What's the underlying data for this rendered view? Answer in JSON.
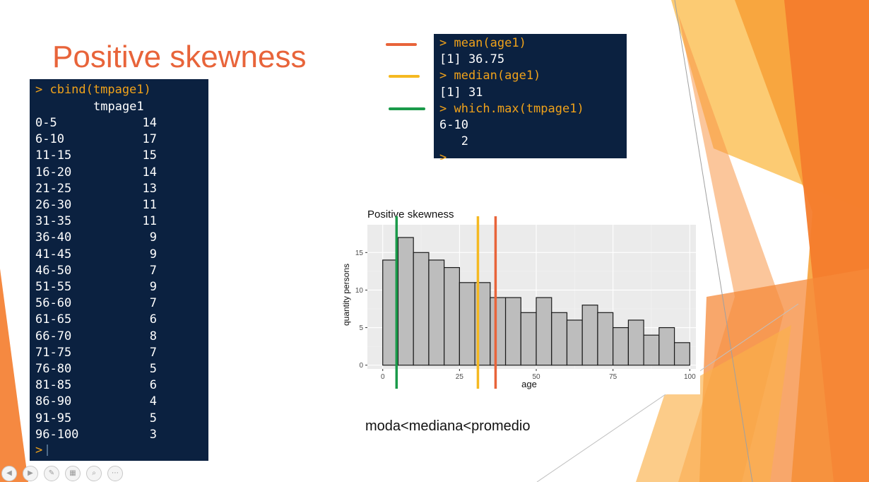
{
  "slide": {
    "title": "Positive skewness",
    "caption": "moda<mediana<promedio"
  },
  "table_console": {
    "command": "> cbind(tmpage1)",
    "header": "tmpage1",
    "rows": [
      {
        "label": "0-5",
        "value": "14"
      },
      {
        "label": "6-10",
        "value": "17"
      },
      {
        "label": "11-15",
        "value": "15"
      },
      {
        "label": "16-20",
        "value": "14"
      },
      {
        "label": "21-25",
        "value": "13"
      },
      {
        "label": "26-30",
        "value": "11"
      },
      {
        "label": "31-35",
        "value": "11"
      },
      {
        "label": "36-40",
        "value": "9"
      },
      {
        "label": "41-45",
        "value": "9"
      },
      {
        "label": "46-50",
        "value": "7"
      },
      {
        "label": "51-55",
        "value": "9"
      },
      {
        "label": "56-60",
        "value": "7"
      },
      {
        "label": "61-65",
        "value": "6"
      },
      {
        "label": "66-70",
        "value": "8"
      },
      {
        "label": "71-75",
        "value": "7"
      },
      {
        "label": "76-80",
        "value": "5"
      },
      {
        "label": "81-85",
        "value": "6"
      },
      {
        "label": "86-90",
        "value": "4"
      },
      {
        "label": "91-95",
        "value": "5"
      },
      {
        "label": "96-100",
        "value": "3"
      }
    ],
    "prompt": ">"
  },
  "stats_console": {
    "lines": [
      {
        "text": "> mean(age1)",
        "kind": "cmd"
      },
      {
        "text": "[1] 36.75",
        "kind": "out"
      },
      {
        "text": "> median(age1)",
        "kind": "cmd"
      },
      {
        "text": "[1] 31",
        "kind": "out"
      },
      {
        "text": "> which.max(tmpage1)",
        "kind": "cmd"
      },
      {
        "text": "6-10",
        "kind": "out"
      },
      {
        "text": "   2",
        "kind": "out"
      }
    ],
    "prompt": ">"
  },
  "legend_colors": {
    "mean": "#e8643a",
    "median": "#f5b921",
    "mode": "#1a9a4a"
  },
  "chart_data": {
    "type": "bar",
    "title": "Positive skewness",
    "xlabel": "age",
    "ylabel": "quantity persons",
    "bin_width": 5,
    "bins_start": [
      0,
      5,
      10,
      15,
      20,
      25,
      30,
      35,
      40,
      45,
      50,
      55,
      60,
      65,
      70,
      75,
      80,
      85,
      90,
      95
    ],
    "values": [
      14,
      17,
      15,
      14,
      13,
      11,
      11,
      9,
      9,
      7,
      9,
      7,
      6,
      8,
      7,
      5,
      6,
      4,
      5,
      3
    ],
    "xlim": [
      -5,
      102
    ],
    "ylim": [
      -0.5,
      18.7
    ],
    "xticks": [
      0,
      25,
      50,
      75,
      100
    ],
    "yticks": [
      0,
      5,
      10,
      15
    ],
    "grid": true,
    "vlines": [
      {
        "x": 4.5,
        "color": "#1a9a4a"
      },
      {
        "x": 31,
        "color": "#f5b921"
      },
      {
        "x": 36.75,
        "color": "#e8643a"
      }
    ],
    "bar_fill": "#bdbdbd",
    "panel_bg": "#ebebeb"
  }
}
